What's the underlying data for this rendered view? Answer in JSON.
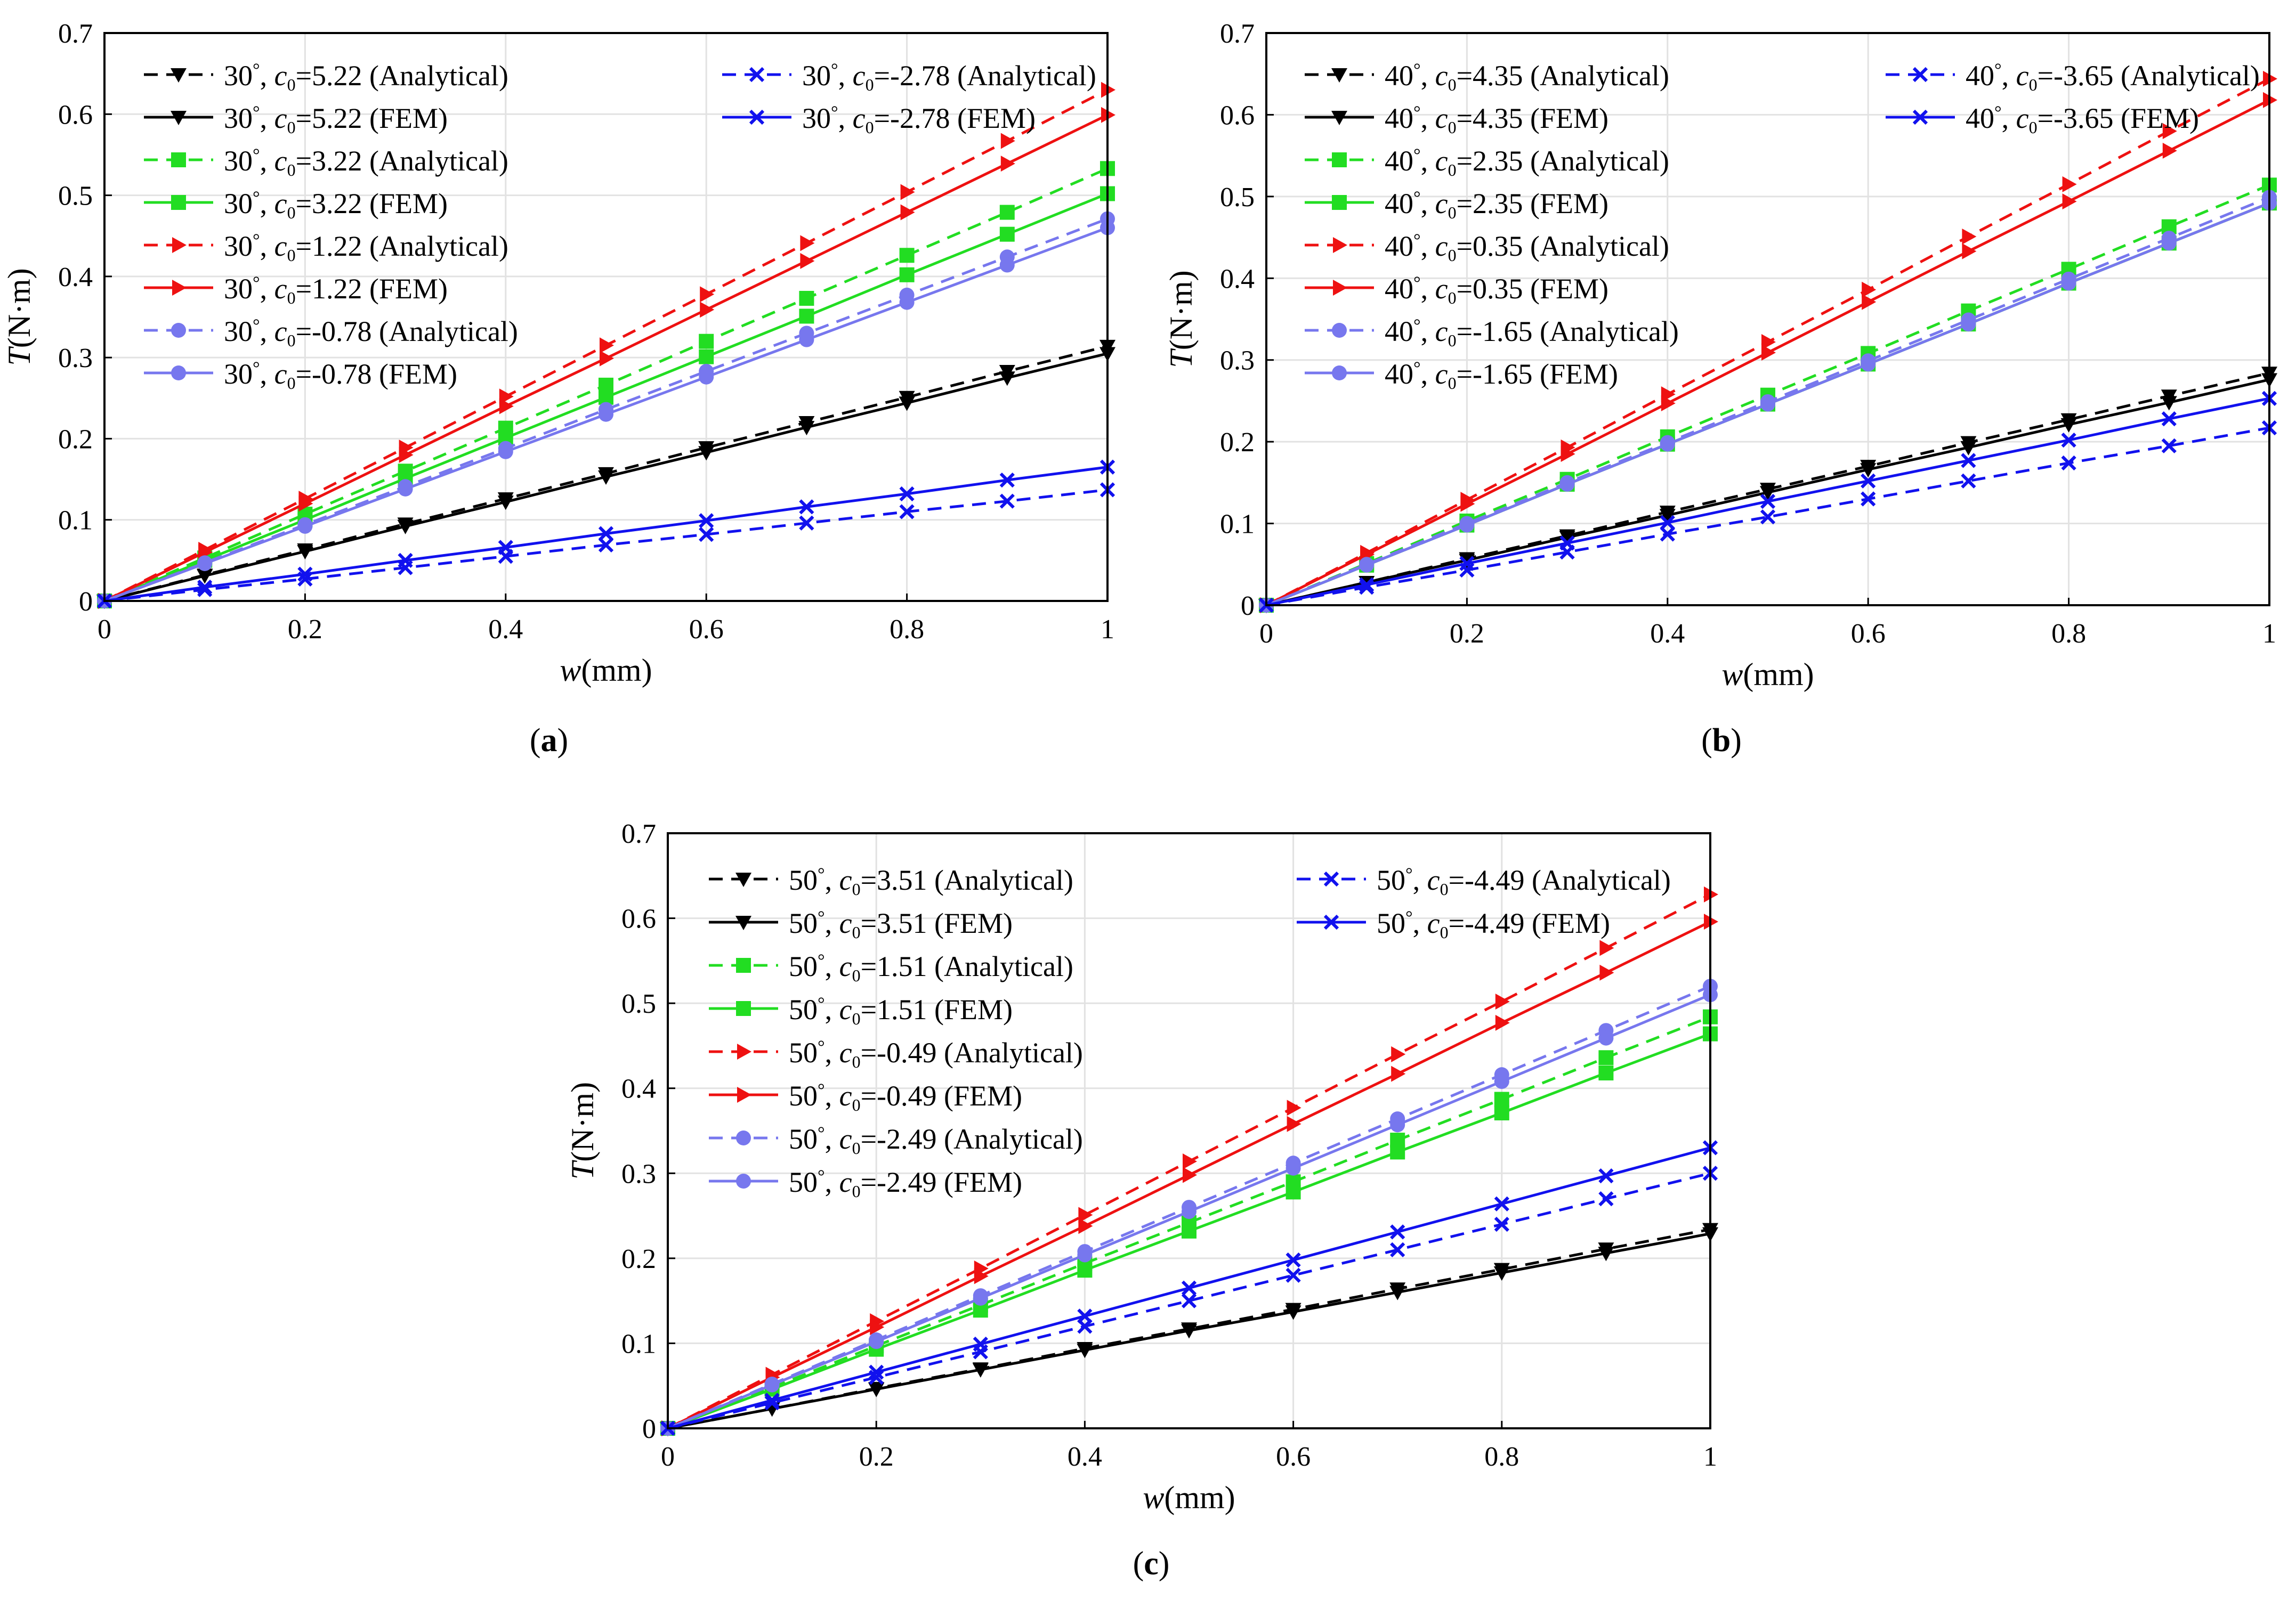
{
  "figure": {
    "panel_labels": [
      "a",
      "b",
      "c"
    ],
    "x_axis_var": "w",
    "x_axis_unit": "(mm)",
    "y_axis_var": "T",
    "y_axis_unit": "(N·m)",
    "c0_symbol": "c",
    "c0_subscript": "0",
    "colors": {
      "black": "#000000",
      "green": "#22dd22",
      "red": "#ee1111",
      "lavender": "#7777ee",
      "blue": "#1111ee"
    }
  },
  "chart_data": [
    {
      "type": "line",
      "panel": "a",
      "xlabel": "w(mm)",
      "ylabel": "T(N·m)",
      "xlim": [
        0,
        1
      ],
      "ylim": [
        0,
        0.7
      ],
      "xticks": [
        "0",
        "0.2",
        "0.4",
        "0.6",
        "0.8",
        "1"
      ],
      "yticks": [
        "0",
        "0.1",
        "0.2",
        "0.3",
        "0.4",
        "0.5",
        "0.6",
        "0.7"
      ],
      "grid": true,
      "legend": "top-left, two columns",
      "x": [
        0,
        0.1,
        0.2,
        0.3,
        0.4,
        0.5,
        0.6,
        0.7,
        0.8,
        0.9,
        1.0
      ],
      "series": [
        {
          "angle": "30",
          "c0": "5.22",
          "method": "(Analytical)",
          "color": "#000000",
          "dashed": true,
          "marker": "tri-down",
          "values": [
            0,
            0.032,
            0.063,
            0.095,
            0.126,
            0.157,
            0.189,
            0.22,
            0.251,
            0.283,
            0.314
          ]
        },
        {
          "angle": "30",
          "c0": "5.22",
          "method": "(FEM)",
          "color": "#000000",
          "dashed": false,
          "marker": "tri-down",
          "values": [
            0,
            0.031,
            0.061,
            0.092,
            0.122,
            0.153,
            0.183,
            0.214,
            0.244,
            0.275,
            0.305
          ]
        },
        {
          "angle": "30",
          "c0": "3.22",
          "method": "(Analytical)",
          "color": "#22dd22",
          "dashed": true,
          "marker": "square",
          "values": [
            0,
            0.053,
            0.107,
            0.16,
            0.213,
            0.266,
            0.32,
            0.373,
            0.426,
            0.479,
            0.533
          ]
        },
        {
          "angle": "30",
          "c0": "3.22",
          "method": "(FEM)",
          "color": "#22dd22",
          "dashed": false,
          "marker": "square",
          "values": [
            0,
            0.05,
            0.1,
            0.151,
            0.201,
            0.251,
            0.301,
            0.351,
            0.402,
            0.452,
            0.502
          ]
        },
        {
          "angle": "30",
          "c0": "1.22",
          "method": "(Analytical)",
          "color": "#ee1111",
          "dashed": true,
          "marker": "tri-right",
          "values": [
            0,
            0.063,
            0.126,
            0.189,
            0.252,
            0.315,
            0.378,
            0.441,
            0.504,
            0.567,
            0.63
          ]
        },
        {
          "angle": "30",
          "c0": "1.22",
          "method": "(FEM)",
          "color": "#ee1111",
          "dashed": false,
          "marker": "tri-right",
          "values": [
            0,
            0.06,
            0.12,
            0.18,
            0.24,
            0.299,
            0.359,
            0.419,
            0.479,
            0.539,
            0.599
          ]
        },
        {
          "angle": "30",
          "c0": "-0.78",
          "method": "(Analytical)",
          "color": "#7777ee",
          "dashed": true,
          "marker": "circle",
          "values": [
            0,
            0.047,
            0.094,
            0.141,
            0.188,
            0.236,
            0.283,
            0.33,
            0.377,
            0.424,
            0.471
          ]
        },
        {
          "angle": "30",
          "c0": "-0.78",
          "method": "(FEM)",
          "color": "#7777ee",
          "dashed": false,
          "marker": "circle",
          "values": [
            0,
            0.046,
            0.092,
            0.138,
            0.184,
            0.23,
            0.276,
            0.322,
            0.368,
            0.414,
            0.46
          ]
        },
        {
          "angle": "30",
          "c0": "-2.78",
          "method": "(Analytical)",
          "color": "#1111ee",
          "dashed": true,
          "marker": "x",
          "values": [
            0,
            0.014,
            0.027,
            0.041,
            0.055,
            0.069,
            0.082,
            0.096,
            0.11,
            0.123,
            0.137
          ]
        },
        {
          "angle": "30",
          "c0": "-2.78",
          "method": "(FEM)",
          "color": "#1111ee",
          "dashed": false,
          "marker": "x",
          "values": [
            0,
            0.017,
            0.033,
            0.05,
            0.066,
            0.083,
            0.099,
            0.116,
            0.132,
            0.149,
            0.165
          ]
        }
      ]
    },
    {
      "type": "line",
      "panel": "b",
      "xlabel": "w(mm)",
      "ylabel": "T(N·m)",
      "xlim": [
        0,
        1
      ],
      "ylim": [
        0,
        0.7
      ],
      "xticks": [
        "0",
        "0.2",
        "0.4",
        "0.6",
        "0.8",
        "1"
      ],
      "yticks": [
        "0",
        "0.1",
        "0.2",
        "0.3",
        "0.4",
        "0.5",
        "0.6",
        "0.7"
      ],
      "grid": true,
      "legend": "top-left, two columns",
      "x": [
        0,
        0.1,
        0.2,
        0.3,
        0.4,
        0.5,
        0.6,
        0.7,
        0.8,
        0.9,
        1.0
      ],
      "series": [
        {
          "angle": "40",
          "c0": "4.35",
          "method": "(Analytical)",
          "color": "#000000",
          "dashed": true,
          "marker": "tri-down",
          "values": [
            0,
            0.028,
            0.057,
            0.085,
            0.114,
            0.142,
            0.17,
            0.199,
            0.227,
            0.256,
            0.284
          ]
        },
        {
          "angle": "40",
          "c0": "4.35",
          "method": " (FEM)",
          "color": "#000000",
          "dashed": false,
          "marker": "tri-down",
          "values": [
            0,
            0.028,
            0.055,
            0.083,
            0.11,
            0.138,
            0.166,
            0.193,
            0.221,
            0.248,
            0.276
          ]
        },
        {
          "angle": "40",
          "c0": "2.35",
          "method": "(Analytical)",
          "color": "#22dd22",
          "dashed": true,
          "marker": "square",
          "values": [
            0,
            0.051,
            0.103,
            0.154,
            0.206,
            0.257,
            0.308,
            0.36,
            0.411,
            0.463,
            0.514
          ]
        },
        {
          "angle": "40",
          "c0": "2.35",
          "method": " (FEM)",
          "color": "#22dd22",
          "dashed": false,
          "marker": "square",
          "values": [
            0,
            0.049,
            0.098,
            0.148,
            0.197,
            0.246,
            0.295,
            0.344,
            0.394,
            0.443,
            0.492
          ]
        },
        {
          "angle": "40",
          "c0": "0.35",
          "method": "(Analytical)",
          "color": "#ee1111",
          "dashed": true,
          "marker": "tri-right",
          "values": [
            0,
            0.064,
            0.129,
            0.193,
            0.258,
            0.322,
            0.386,
            0.451,
            0.515,
            0.58,
            0.644
          ]
        },
        {
          "angle": "40",
          "c0": "0.35",
          "method": "(FEM)",
          "color": "#ee1111",
          "dashed": false,
          "marker": "tri-right",
          "values": [
            0,
            0.062,
            0.124,
            0.185,
            0.247,
            0.309,
            0.371,
            0.433,
            0.494,
            0.556,
            0.618
          ]
        },
        {
          "angle": "40",
          "c0": "-1.65",
          "method": "(Analytical)",
          "color": "#7777ee",
          "dashed": true,
          "marker": "circle",
          "values": [
            0,
            0.05,
            0.1,
            0.15,
            0.199,
            0.249,
            0.299,
            0.349,
            0.399,
            0.449,
            0.499
          ]
        },
        {
          "angle": "40",
          "c0": "-1.65",
          "method": "(FEM)",
          "color": "#7777ee",
          "dashed": false,
          "marker": "circle",
          "values": [
            0,
            0.049,
            0.098,
            0.148,
            0.197,
            0.246,
            0.295,
            0.344,
            0.394,
            0.443,
            0.492
          ]
        },
        {
          "angle": "40",
          "c0": "-3.65",
          "method": "(Analytical)",
          "color": "#1111ee",
          "dashed": true,
          "marker": "x",
          "values": [
            0,
            0.022,
            0.043,
            0.065,
            0.087,
            0.108,
            0.13,
            0.152,
            0.174,
            0.195,
            0.217
          ]
        },
        {
          "angle": "40",
          "c0": "-3.65",
          "method": "(FEM)",
          "color": "#1111ee",
          "dashed": false,
          "marker": "x",
          "values": [
            0,
            0.025,
            0.051,
            0.076,
            0.101,
            0.127,
            0.152,
            0.177,
            0.202,
            0.228,
            0.253
          ]
        }
      ]
    },
    {
      "type": "line",
      "panel": "c",
      "xlabel": "w(mm)",
      "ylabel": "T(N·m)",
      "xlim": [
        0,
        1
      ],
      "ylim": [
        0,
        0.7
      ],
      "xticks": [
        "0",
        "0.2",
        "0.4",
        "0.6",
        "0.8",
        "1"
      ],
      "yticks": [
        "0",
        "0.1",
        "0.2",
        "0.3",
        "0.4",
        "0.5",
        "0.6",
        "0.7"
      ],
      "grid": true,
      "legend": "top-left, two columns",
      "x": [
        0,
        0.1,
        0.2,
        0.3,
        0.4,
        0.5,
        0.6,
        0.7,
        0.8,
        0.9,
        1.0
      ],
      "series": [
        {
          "angle": "50",
          "c0": "3.51",
          "method": "(Analytical)",
          "color": "#000000",
          "dashed": true,
          "marker": "tri-down",
          "values": [
            0,
            0.023,
            0.047,
            0.07,
            0.094,
            0.117,
            0.14,
            0.164,
            0.187,
            0.211,
            0.234
          ]
        },
        {
          "angle": "50",
          "c0": "3.51",
          "method": "(FEM)",
          "color": "#000000",
          "dashed": false,
          "marker": "tri-down",
          "values": [
            0,
            0.023,
            0.046,
            0.069,
            0.092,
            0.115,
            0.137,
            0.16,
            0.183,
            0.206,
            0.229
          ]
        },
        {
          "angle": "50",
          "c0": "1.51",
          "method": "(Analytical)",
          "color": "#22dd22",
          "dashed": true,
          "marker": "square",
          "values": [
            0,
            0.048,
            0.097,
            0.145,
            0.194,
            0.242,
            0.29,
            0.339,
            0.387,
            0.436,
            0.484
          ]
        },
        {
          "angle": "50",
          "c0": "1.51",
          "method": "(FEM)",
          "color": "#22dd22",
          "dashed": false,
          "marker": "square",
          "values": [
            0,
            0.046,
            0.093,
            0.139,
            0.186,
            0.232,
            0.278,
            0.325,
            0.371,
            0.418,
            0.464
          ]
        },
        {
          "angle": "50",
          "c0": "-0.49",
          "method": "(Analytical)",
          "color": "#ee1111",
          "dashed": true,
          "marker": "tri-right",
          "values": [
            0,
            0.063,
            0.126,
            0.188,
            0.251,
            0.314,
            0.377,
            0.44,
            0.502,
            0.565,
            0.628
          ]
        },
        {
          "angle": "50",
          "c0": "-0.49",
          "method": "(FEM)",
          "color": "#ee1111",
          "dashed": false,
          "marker": "tri-right",
          "values": [
            0,
            0.06,
            0.119,
            0.179,
            0.238,
            0.298,
            0.358,
            0.417,
            0.477,
            0.536,
            0.596
          ]
        },
        {
          "angle": "50",
          "c0": "-2.49",
          "method": "(Analytical)",
          "color": "#7777ee",
          "dashed": true,
          "marker": "circle",
          "values": [
            0,
            0.052,
            0.104,
            0.156,
            0.208,
            0.26,
            0.312,
            0.364,
            0.416,
            0.468,
            0.52
          ]
        },
        {
          "angle": "50",
          "c0": "-2.49",
          "method": "(FEM)",
          "color": "#7777ee",
          "dashed": false,
          "marker": "circle",
          "values": [
            0,
            0.051,
            0.102,
            0.153,
            0.204,
            0.255,
            0.306,
            0.357,
            0.408,
            0.459,
            0.51
          ]
        },
        {
          "angle": "50",
          "c0": "-4.49",
          "method": "(Analytical)",
          "color": "#1111ee",
          "dashed": true,
          "marker": "x",
          "values": [
            0,
            0.03,
            0.06,
            0.09,
            0.12,
            0.15,
            0.18,
            0.21,
            0.24,
            0.27,
            0.3
          ]
        },
        {
          "angle": "50",
          "c0": "-4.49",
          "method": "(FEM)",
          "color": "#1111ee",
          "dashed": false,
          "marker": "x",
          "values": [
            0,
            0.033,
            0.066,
            0.099,
            0.132,
            0.165,
            0.198,
            0.231,
            0.264,
            0.297,
            0.33
          ]
        }
      ]
    }
  ]
}
